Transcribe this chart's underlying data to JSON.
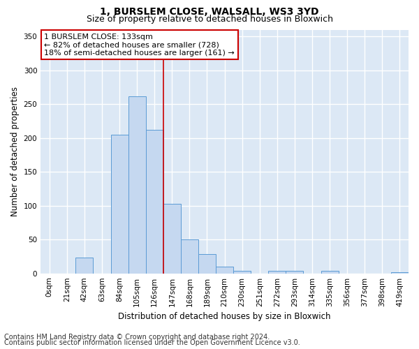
{
  "title_line1": "1, BURSLEM CLOSE, WALSALL, WS3 3YD",
  "title_line2": "Size of property relative to detached houses in Bloxwich",
  "xlabel": "Distribution of detached houses by size in Bloxwich",
  "ylabel": "Number of detached properties",
  "annotation_line1": "1 BURSLEM CLOSE: 133sqm",
  "annotation_line2": "← 82% of detached houses are smaller (728)",
  "annotation_line3": "18% of semi-detached houses are larger (161) →",
  "footer_line1": "Contains HM Land Registry data © Crown copyright and database right 2024.",
  "footer_line2": "Contains public sector information licensed under the Open Government Licence v3.0.",
  "bar_labels": [
    "0sqm",
    "21sqm",
    "42sqm",
    "63sqm",
    "84sqm",
    "105sqm",
    "126sqm",
    "147sqm",
    "168sqm",
    "189sqm",
    "210sqm",
    "230sqm",
    "251sqm",
    "272sqm",
    "293sqm",
    "314sqm",
    "335sqm",
    "356sqm",
    "377sqm",
    "398sqm",
    "419sqm"
  ],
  "bar_values": [
    0,
    0,
    23,
    0,
    205,
    262,
    212,
    103,
    50,
    29,
    10,
    4,
    0,
    4,
    4,
    0,
    4,
    0,
    0,
    0,
    2
  ],
  "bar_color": "#c5d8f0",
  "bar_edge_color": "#5b9bd5",
  "background_color": "#dce8f5",
  "grid_color": "#ffffff",
  "vline_x": 6.5,
  "vline_color": "#cc0000",
  "ylim": [
    0,
    360
  ],
  "yticks": [
    0,
    50,
    100,
    150,
    200,
    250,
    300,
    350
  ],
  "annotation_box_color": "#ffffff",
  "annotation_box_edge": "#cc0000",
  "title_fontsize": 10,
  "subtitle_fontsize": 9,
  "axis_label_fontsize": 8.5,
  "tick_fontsize": 7.5,
  "footer_fontsize": 7,
  "annotation_fontsize": 8
}
